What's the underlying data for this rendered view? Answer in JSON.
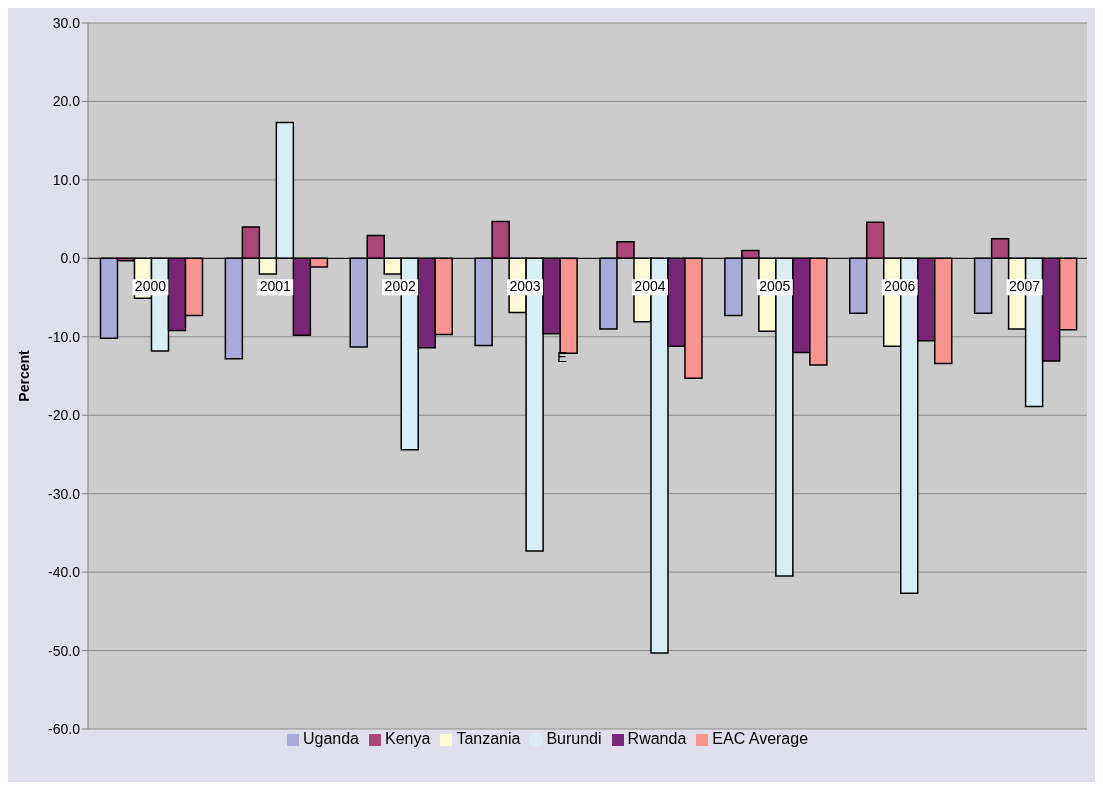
{
  "chart_data": {
    "type": "bar",
    "ylabel": "Percent",
    "categories": [
      "2000",
      "2001",
      "2002",
      "2003",
      "2004",
      "2005",
      "2006",
      "2007"
    ],
    "series": [
      {
        "name": "Uganda",
        "color": "#aaaad6",
        "values": [
          -10.2,
          -12.8,
          -11.3,
          -11.1,
          -9.0,
          -7.3,
          -7.0,
          -7.0
        ]
      },
      {
        "name": "Kenya",
        "color": "#aa4777",
        "values": [
          -0.3,
          4.0,
          2.9,
          4.7,
          2.1,
          1.0,
          4.6,
          2.5
        ]
      },
      {
        "name": "Tanzania",
        "color": "#fefad8",
        "values": [
          -5.1,
          -2.0,
          -2.0,
          -6.9,
          -8.1,
          -9.3,
          -11.2,
          -9.0
        ]
      },
      {
        "name": "Burundi",
        "color": "#d8eef4",
        "values": [
          -11.8,
          17.3,
          -24.4,
          -37.3,
          -50.3,
          -40.5,
          -42.7,
          -18.9
        ]
      },
      {
        "name": "Rwanda",
        "color": "#7a2677",
        "values": [
          -9.2,
          -9.8,
          -11.4,
          -9.6,
          -11.2,
          -12.0,
          -10.5,
          -13.1
        ]
      },
      {
        "name": "EAC Average",
        "color": "#f89491",
        "values": [
          -7.3,
          -1.1,
          -9.7,
          -12.1,
          -15.3,
          -13.6,
          -13.4,
          -9.1
        ]
      }
    ],
    "ylim": [
      -60,
      30
    ],
    "yticks": [
      {
        "value": -60,
        "label": "-60.0"
      },
      {
        "value": -50,
        "label": "-50.0"
      },
      {
        "value": -40,
        "label": "-40.0"
      },
      {
        "value": -30,
        "label": "-30.0"
      },
      {
        "value": -20,
        "label": "-20.0"
      },
      {
        "value": -10,
        "label": "-10.0"
      },
      {
        "value": 0,
        "label": "0.0"
      },
      {
        "value": 10,
        "label": "10.0"
      },
      {
        "value": 20,
        "label": "20.0"
      },
      {
        "value": 30,
        "label": "30.0"
      }
    ],
    "grid": "y",
    "legend": "bottom",
    "annotations": [
      {
        "text": "E",
        "x": "2003",
        "y": -12.6
      }
    ]
  }
}
